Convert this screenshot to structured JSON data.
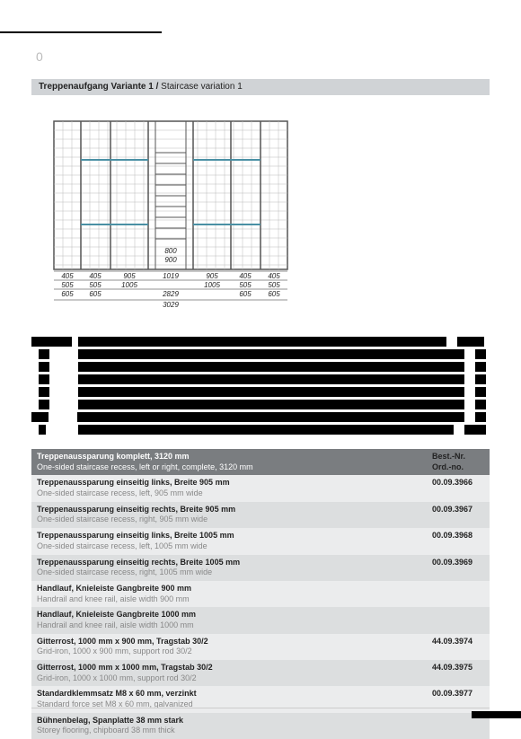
{
  "header": {
    "left_number": "0",
    "right_line1": "",
    "right_line2": ""
  },
  "section": {
    "title_de": "Treppenaufgang Variante 1 /",
    "title_en": " Staircase variation 1"
  },
  "diagram": {
    "dims_bottom_row1": [
      "405",
      "405",
      "905",
      "1019",
      "905",
      "405",
      "405"
    ],
    "dims_bottom_row2": [
      "505",
      "505",
      "1005",
      "",
      "1005",
      "505",
      "505"
    ],
    "dims_bottom_row3": [
      "605",
      "605",
      "",
      "2829",
      "",
      "605",
      "605"
    ],
    "dims_center": [
      "800",
      "900"
    ],
    "dims_total": "3029",
    "colors": {
      "frame": "#555555",
      "grid": "#bbbbbb",
      "accent": "#4a90a4",
      "text": "#222222"
    }
  },
  "table": {
    "header_left_de": "Treppenaussparung komplett, 3120 mm",
    "header_left_en": "One-sided staircase recess, left or right, complete, 3120 mm",
    "header_right_de": "Best.-Nr.",
    "header_right_en": "Ord.-no.",
    "rows": [
      {
        "de": "Treppenaussparung einseitig links, Breite 905 mm",
        "en": "One-sided staircase recess, left, 905 mm wide",
        "ord": "00.09.3966",
        "shade": "odd"
      },
      {
        "de": "Treppenaussparung einseitig rechts, Breite 905 mm",
        "en": "One-sided staircase recess, right, 905 mm wide",
        "ord": "00.09.3967",
        "shade": "even"
      },
      {
        "de": "Treppenaussparung einseitig links, Breite 1005 mm",
        "en": "One-sided staircase recess, left, 1005 mm wide",
        "ord": "00.09.3968",
        "shade": "odd"
      },
      {
        "de": "Treppenaussparung einseitig rechts, Breite 1005 mm",
        "en": "One-sided staircase recess, right, 1005 mm wide",
        "ord": "00.09.3969",
        "shade": "even"
      },
      {
        "de": "Handlauf, Knieleiste Gangbreite 900 mm",
        "en": "Handrail and knee rail, aisle width 900 mm",
        "ord": "",
        "shade": "odd"
      },
      {
        "de": "Handlauf, Knieleiste Gangbreite 1000 mm",
        "en": "Handrail and knee rail, aisle width 1000 mm",
        "ord": "",
        "shade": "even"
      },
      {
        "de": "Gitterrost, 1000 mm x 900 mm, Tragstab 30/2",
        "en": "Grid-iron, 1000 x 900 mm, support rod 30/2",
        "ord": "44.09.3974",
        "shade": "odd"
      },
      {
        "de": "Gitterrost, 1000 mm x 1000 mm, Tragstab 30/2",
        "en": "Grid-iron, 1000 x 1000 mm, support rod 30/2",
        "ord": "44.09.3975",
        "shade": "even"
      },
      {
        "de": "Standardklemmsatz M8 x 60 mm, verzinkt",
        "en": "Standard force set M8 x 60 mm, galvanized",
        "ord": "00.09.3977",
        "shade": "odd"
      },
      {
        "de": "Bühnenbelag, Spanplatte 38 mm stark",
        "en": "Storey flooring, chipboard 38 mm thick",
        "ord": "",
        "shade": "even"
      }
    ]
  }
}
